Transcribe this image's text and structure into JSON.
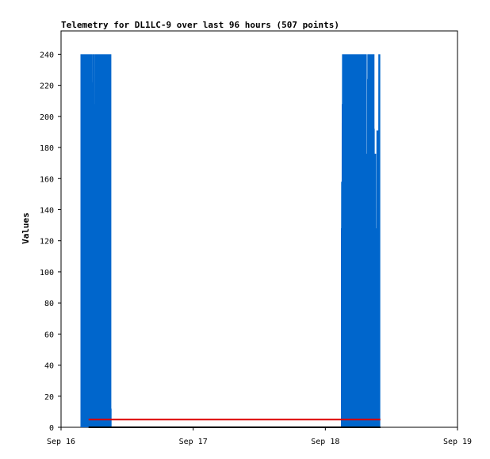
{
  "chart_data": {
    "type": "line",
    "title": "Telemetry for DL1LC-9 over last 96 hours (507 points)",
    "xlabel": "",
    "ylabel": "Values",
    "x_ticks": [
      "Sep 16",
      "Sep 17",
      "Sep 18",
      "Sep 19"
    ],
    "xlim": [
      "Sep 16 00:00",
      "Sep 19 00:00"
    ],
    "ylim": [
      0,
      255
    ],
    "y_ticks": [
      0,
      20,
      40,
      60,
      80,
      100,
      120,
      140,
      160,
      180,
      200,
      220,
      240
    ],
    "grid": false,
    "legend": "none",
    "series": [
      {
        "color": "#0066cc",
        "x_hours": [
          3.7,
          3.75,
          3.8,
          3.85,
          3.9,
          3.95,
          4.0,
          4.05,
          4.1,
          4.15,
          4.2,
          4.25,
          4.3,
          4.35,
          4.4,
          4.45,
          4.5,
          4.55,
          4.6,
          4.65,
          4.7,
          4.75,
          4.8,
          4.85,
          4.9,
          4.95,
          5.0,
          5.05,
          5.1,
          5.15,
          5.2,
          5.25,
          5.3,
          5.35,
          5.4,
          5.45,
          5.5,
          5.55,
          5.6,
          5.65,
          5.7,
          5.75,
          5.8,
          5.85,
          5.9,
          5.95,
          6.0,
          6.05,
          6.1,
          6.15,
          6.2,
          6.25,
          6.3,
          6.35,
          6.4,
          6.45,
          6.5,
          6.55,
          6.6,
          6.65,
          6.7,
          6.75,
          6.8,
          6.85,
          6.9,
          6.95,
          7.0,
          7.05,
          7.1,
          7.15,
          7.2,
          7.25,
          7.3,
          7.35,
          7.4,
          7.45,
          7.5,
          7.55,
          7.6,
          7.65,
          7.7,
          7.75,
          7.8,
          7.85,
          7.9,
          7.95,
          8.0,
          8.05,
          8.1,
          8.15,
          8.2,
          8.25,
          8.3,
          8.35,
          8.4,
          8.45,
          8.5,
          8.55,
          8.6,
          8.65,
          8.7,
          8.75,
          8.8,
          8.85,
          8.9,
          8.95,
          9.0,
          9.05,
          9.1,
          9.15,
          9.2,
          9.25,
          9.3,
          9.35,
          9.4,
          9.45,
          9.5,
          9.55,
          9.6,
          9.65,
          9.7,
          9.75,
          9.8,
          9.85,
          9.9,
          9.95,
          10.0,
          10.05,
          10.1,
          10.15,
          10.2,
          10.25,
          10.3,
          10.35,
          10.4,
          10.45,
          10.5,
          10.55,
          10.6,
          10.65,
          10.7,
          10.75,
          10.8,
          10.85,
          10.9,
          10.95,
          11.0,
          11.05,
          11.1,
          11.15,
          11.2,
          11.25,
          11.3,
          11.35,
          11.4,
          11.45,
          11.5,
          11.55,
          11.6,
          11.65,
          11.7,
          11.75,
          11.8,
          11.85,
          11.9,
          11.95,
          12.0,
          12.05,
          12.1,
          12.15,
          12.2,
          12.25,
          12.3,
          12.35,
          12.4,
          12.45,
          12.5,
          12.55,
          12.6,
          12.65,
          12.7,
          12.75,
          12.8,
          12.85,
          12.9,
          12.95,
          13.0,
          13.05,
          13.1,
          13.15,
          13.2,
          13.25,
          13.3,
          13.35,
          13.4,
          13.45,
          13.5,
          13.55,
          13.6,
          13.65,
          13.7,
          13.75,
          13.8,
          13.85,
          13.9,
          13.95,
          14.0,
          14.05,
          14.1,
          14.15,
          14.2,
          14.25,
          14.3,
          14.35,
          14.4,
          14.45,
          14.5,
          14.55,
          14.6,
          14.65,
          14.7,
          14.75,
          14.8,
          14.85,
          14.9,
          14.95,
          15.0,
          15.05,
          15.1,
          15.15,
          15.2,
          15.25,
          15.3,
          15.35,
          15.4,
          15.45,
          15.5,
          15.55,
          15.6,
          15.65,
          15.7,
          15.75,
          15.8,
          15.85,
          15.9,
          15.95,
          16.0,
          16.05,
          16.1,
          16.15,
          16.2,
          16.25,
          16.3,
          16.35,
          16.4,
          16.45,
          16.5,
          16.55,
          16.6,
          16.65,
          16.7,
          16.75,
          16.8,
          16.85,
          16.9,
          16.95,
          17.0,
          17.05,
          17.1,
          17.15,
          17.2,
          17.25,
          17.3,
          17.35,
          17.4,
          17.45,
          17.5,
          17.55,
          17.6,
          17.65,
          17.7,
          17.75,
          17.8,
          17.85,
          17.9,
          17.95,
          18.0,
          18.05,
          18.1,
          18.15,
          18.2,
          18.25,
          18.3,
          18.35,
          18.4,
          18.45,
          18.5,
          18.55,
          18.6,
          18.65,
          18.7,
          18.75,
          18.8,
          18.85,
          18.9,
          18.95,
          19.0,
          19.05,
          19.1,
          19.15,
          19.2,
          19.25,
          19.3,
          19.35,
          19.4,
          19.45,
          19.5,
          19.55,
          19.6,
          19.65,
          19.7,
          19.75,
          19.8,
          19.85,
          19.9,
          19.95,
          20.0,
          20.05,
          20.1,
          20.15,
          20.2,
          20.25,
          20.3,
          20.35,
          20.4,
          20.45,
          20.5,
          20.55,
          20.6,
          20.65,
          20.7,
          20.75,
          20.8,
          20.85,
          20.9,
          20.95,
          21.0,
          21.05,
          21.1,
          21.15,
          21.2,
          21.25,
          21.3,
          21.35,
          21.4,
          21.45,
          21.5,
          21.55,
          21.6,
          21.65,
          21.7,
          21.75,
          21.8,
          21.85,
          21.9,
          21.95,
          22.0,
          22.05,
          22.1,
          22.15,
          22.2,
          22.25,
          22.3,
          22.35,
          22.4,
          22.45,
          22.5,
          22.55,
          22.6,
          22.65,
          22.7,
          22.75,
          22.8,
          22.85,
          22.9,
          22.95,
          23.0,
          23.05,
          23.1,
          23.15,
          23.2,
          23.25,
          23.3,
          23.35,
          23.4,
          23.45,
          23.5,
          23.55,
          23.6,
          23.65,
          23.7,
          23.75,
          23.8,
          23.85,
          23.9,
          23.95,
          24.0,
          24.05,
          24.1,
          24.15,
          24.2,
          24.25,
          24.3,
          24.35,
          24.4,
          24.45,
          24.5,
          24.55,
          24.6,
          24.65,
          24.7,
          24.75,
          24.8,
          24.85,
          24.9,
          24.95,
          25.0,
          25.05,
          25.1,
          25.15,
          25.2,
          25.25,
          25.3,
          25.35,
          25.4,
          25.45,
          25.5,
          25.55,
          25.6,
          25.65,
          25.7,
          25.75,
          25.8,
          25.85,
          25.9,
          25.95,
          26.0,
          26.05,
          26.1,
          26.15,
          26.2,
          26.25,
          26.3,
          26.35,
          26.4,
          26.45,
          26.5,
          26.55,
          26.6,
          26.65,
          26.7,
          26.75,
          26.8,
          26.85,
          26.9,
          26.95,
          27.0,
          27.05,
          27.1,
          27.15,
          27.2,
          27.25,
          27.3,
          27.35,
          27.4,
          27.45,
          27.5,
          27.55,
          27.6,
          27.65,
          27.7,
          27.75,
          27.8,
          27.85,
          27.9,
          27.95,
          28.0,
          28.05,
          28.1,
          28.15,
          28.2,
          28.25,
          28.3,
          28.35,
          28.4,
          28.45,
          28.5,
          28.55,
          28.6,
          28.65,
          28.7,
          28.75,
          28.8,
          28.85,
          28.9,
          28.95,
          29.0,
          29.05,
          29.1,
          29.15,
          29.2,
          29.25,
          29.3,
          29.35,
          29.4,
          29.45,
          29.5,
          29.55,
          29.6,
          29.65,
          29.7,
          29.75,
          29.8,
          29.85,
          29.9,
          29.95,
          30.0,
          30.05,
          30.1,
          30.15,
          30.2,
          30.25,
          30.3,
          30.35,
          30.4,
          30.45,
          30.5,
          30.55,
          30.6,
          30.65,
          30.7,
          30.75,
          30.8,
          30.85,
          30.9,
          30.95,
          31.0,
          31.05,
          31.1,
          31.15,
          31.2,
          31.25,
          31.3,
          31.35,
          31.4,
          31.45,
          31.5,
          31.55,
          31.6,
          31.65,
          31.7,
          31.75,
          31.8,
          31.85,
          31.9,
          31.95,
          32.0,
          32.05,
          32.1,
          32.15,
          32.2,
          32.25,
          32.3,
          32.35,
          32.4,
          32.45,
          32.5,
          32.55,
          32.6,
          32.65,
          32.7,
          32.75,
          32.8,
          32.85,
          32.9,
          32.95,
          33.0,
          33.05,
          33.1,
          33.15,
          33.2,
          33.25,
          33.3,
          33.35,
          33.4,
          33.45,
          33.5,
          33.55,
          33.6,
          33.65,
          33.7,
          33.75,
          33.8,
          33.85,
          33.9,
          33.95,
          34.0,
          34.05,
          34.1,
          34.15,
          34.2,
          34.25,
          34.3,
          34.35,
          34.4,
          34.45,
          34.5,
          34.55,
          34.6,
          34.65,
          34.7,
          34.75,
          34.8,
          34.85,
          34.9,
          34.95,
          35.0,
          35.05,
          35.1,
          35.15,
          35.2,
          35.25,
          35.3,
          35.35,
          35.4,
          35.45,
          35.5,
          35.55,
          35.6,
          35.65,
          35.7,
          35.75,
          35.8,
          35.85,
          35.9,
          35.95,
          36.0,
          36.05,
          36.1,
          36.15,
          36.2,
          36.25,
          36.3,
          36.35,
          36.4,
          36.45,
          36.5,
          36.55,
          36.6,
          36.65,
          36.7,
          36.75,
          36.8,
          36.85,
          36.9,
          36.95,
          37.0,
          37.05,
          37.1,
          37.15,
          37.2,
          37.25,
          37.3,
          37.35,
          37.4,
          37.45,
          37.5,
          37.55,
          37.6,
          37.65,
          37.7,
          37.75,
          37.8,
          37.85,
          37.9,
          37.95,
          38.0,
          38.05,
          38.1,
          38.15,
          38.2,
          38.25,
          38.3,
          38.35,
          38.4,
          38.45,
          38.5,
          38.55,
          38.6,
          38.65,
          38.7,
          38.75,
          38.8,
          38.85,
          38.9,
          38.95,
          39.0,
          39.05,
          39.1,
          39.15,
          39.2,
          39.25,
          39.3,
          39.35,
          39.4,
          39.45,
          39.5,
          39.55,
          39.6,
          39.65,
          39.7,
          39.75,
          39.8,
          39.85,
          39.9,
          39.95,
          40.0,
          40.05,
          40.1,
          40.15,
          40.2,
          40.25,
          40.3,
          40.35,
          40.4,
          40.45,
          40.5,
          40.55,
          40.6,
          40.65,
          40.7,
          40.75,
          40.8,
          40.85,
          40.9,
          40.95,
          41.0,
          41.05,
          41.1,
          41.15,
          41.2,
          41.25,
          41.3,
          41.35,
          41.4,
          41.45,
          41.5,
          41.55,
          41.6,
          41.65,
          41.7,
          41.75,
          41.8,
          41.85,
          41.9,
          41.95,
          42.0,
          42.05,
          42.1,
          42.15,
          42.2,
          42.25,
          42.3,
          42.35,
          42.4,
          42.45,
          42.5,
          42.55,
          42.6,
          42.65,
          42.7,
          42.75,
          42.8,
          42.85,
          42.9,
          42.95,
          43.0,
          43.05,
          43.1,
          43.15,
          43.2,
          43.25,
          43.3,
          43.35,
          43.4,
          43.45,
          43.5,
          43.55,
          43.6,
          43.65,
          43.7,
          43.75,
          43.8,
          43.85,
          43.9,
          43.95,
          44.0,
          44.05,
          44.1,
          44.15,
          44.2,
          44.25,
          44.3,
          44.35,
          44.4,
          44.45,
          44.5,
          44.55,
          44.6,
          44.65,
          44.7,
          44.75,
          44.8,
          44.85,
          44.9,
          44.95,
          45.0,
          45.05,
          45.1,
          45.15,
          45.2,
          45.25,
          45.3,
          45.35,
          45.4,
          45.45,
          45.5,
          45.55,
          45.6,
          45.65,
          45.7,
          45.75,
          45.8,
          45.85,
          45.9,
          45.95,
          46.0,
          46.05,
          46.1,
          46.15,
          46.2,
          46.25,
          46.3,
          46.35,
          46.4,
          46.45,
          46.5,
          46.55,
          46.6,
          46.65,
          46.7,
          46.75,
          46.8,
          46.85,
          46.9,
          46.95,
          47.0,
          47.05,
          47.1,
          47.15,
          47.2,
          47.25,
          47.3,
          47.35,
          47.4,
          47.45,
          47.5,
          47.55,
          47.6,
          47.65,
          47.7,
          47.75,
          47.8,
          47.85,
          47.9,
          47.95,
          48.0,
          48.05,
          48.1,
          48.15,
          48.2,
          48.25,
          48.3,
          48.35,
          48.4,
          48.45,
          48.5,
          48.55,
          48.6,
          48.65,
          48.7,
          48.75,
          48.8,
          48.85,
          48.9,
          48.95,
          49.0,
          49.05,
          49.1,
          49.15,
          49.2,
          49.25,
          49.3,
          49.35,
          49.4,
          49.45,
          49.5,
          49.55,
          49.6,
          49.65,
          49.7,
          49.75,
          49.8,
          49.85,
          49.9,
          49.95,
          50.0,
          50.05,
          50.1,
          50.15,
          50.2,
          50.25,
          50.3,
          50.35,
          50.4,
          50.45,
          50.5,
          50.55,
          50.6,
          50.65,
          50.7,
          50.75,
          50.8,
          50.85,
          50.9,
          50.95,
          51.0,
          51.05,
          51.1,
          51.15,
          51.2,
          51.25,
          51.3,
          51.35,
          51.4,
          51.45,
          51.5,
          51.55,
          51.6,
          51.65,
          51.7,
          51.75,
          51.8,
          51.85,
          51.9,
          51.95,
          52.0,
          52.05,
          52.1,
          52.15,
          52.2,
          52.25,
          52.3,
          52.35,
          52.4,
          52.45,
          52.5,
          52.55,
          52.6,
          52.65,
          52.7,
          52.75,
          52.8,
          52.85,
          52.9,
          52.95,
          53.0,
          53.05,
          53.1,
          53.15,
          53.2,
          53.25,
          53.3,
          53.35,
          53.4,
          53.45,
          53.5,
          53.55,
          53.6,
          53.65,
          53.7,
          53.75,
          53.8,
          53.85,
          53.9,
          53.95,
          54.0,
          54.05,
          54.1,
          54.15,
          54.2,
          54.25,
          54.3,
          54.35,
          54.4,
          54.45,
          54.5,
          54.55,
          54.6,
          54.65,
          54.7,
          54.75,
          54.8,
          54.85,
          54.9,
          54.95,
          55.0,
          55.05,
          55.1,
          55.15,
          55.2,
          55.25,
          55.3,
          55.35,
          55.4,
          55.45,
          55.5,
          55.55,
          55.6,
          55.65,
          55.7,
          55.75,
          55.8,
          55.85,
          55.9,
          55.95,
          56.0,
          56.05,
          56.1,
          56.15,
          56.2,
          56.25,
          56.3,
          56.35,
          56.4,
          56.45,
          56.5,
          56.55,
          56.6,
          56.65,
          56.7,
          56.75,
          56.8,
          56.85,
          56.9,
          56.95,
          57.0,
          57.05,
          57.1,
          57.15,
          57.2,
          57.25,
          57.3,
          57.35,
          57.4,
          57.45,
          57.5,
          57.55,
          57.6,
          57.65,
          57.7,
          57.75,
          57.8,
          57.85,
          57.9,
          57.95,
          58.0,
          58.05,
          58.1,
          58.15,
          58.2,
          58.25,
          58.3,
          58.35,
          58.4,
          58.45,
          58.5,
          58.55,
          58.6,
          58.65,
          58.7,
          58.75,
          58.8,
          58.85,
          58.9,
          58.95,
          59.0,
          59.05,
          59.1,
          59.15,
          59.2,
          59.25,
          59.3,
          59.35,
          59.4,
          59.45,
          59.5,
          59.55,
          59.6,
          59.65,
          59.7,
          59.75,
          59.8,
          59.85,
          59.9,
          59.95
        ],
        "note": "intensity bursts on Sep 16 ~04:00–08:00 and Sep 18 ~04:00–08:00"
      },
      {
        "color": "#dd0000",
        "x_range_hours": [
          5.0,
          58.0
        ],
        "value": 5
      },
      {
        "color": "#000000",
        "x_range_hours": [
          5.0,
          58.0
        ],
        "value": 0
      }
    ]
  }
}
